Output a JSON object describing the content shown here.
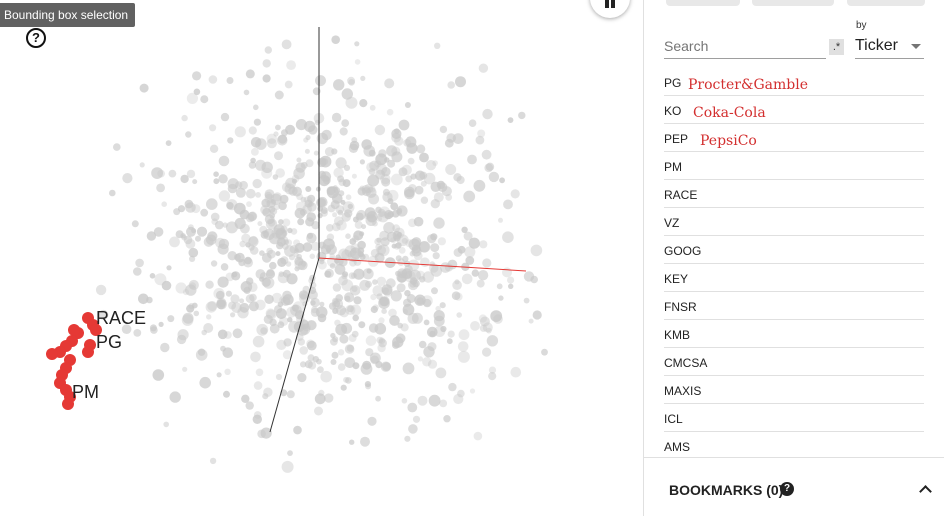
{
  "viz": {
    "tooltip": "Bounding box selection",
    "help_glyph": "?",
    "labels": [
      {
        "text": "RACE"
      },
      {
        "text": "PG"
      },
      {
        "text": "PM"
      }
    ],
    "highlight_color": "#e53935",
    "point_color": "#c8c8c8",
    "axis_x_color": "#e53935",
    "axis_y_color": "#333333"
  },
  "search": {
    "placeholder": "Search",
    "regex_label": ".*"
  },
  "by": {
    "label": "by",
    "selected": "Ticker"
  },
  "list": {
    "items": [
      {
        "ticker": "PG",
        "company": "Procter&Gamble"
      },
      {
        "ticker": "KO",
        "company": "Coka-Cola"
      },
      {
        "ticker": "PEP",
        "company": "PepsiCo"
      },
      {
        "ticker": "PM",
        "company": ""
      },
      {
        "ticker": "RACE",
        "company": ""
      },
      {
        "ticker": "VZ",
        "company": ""
      },
      {
        "ticker": "GOOG",
        "company": ""
      },
      {
        "ticker": "KEY",
        "company": ""
      },
      {
        "ticker": "FNSR",
        "company": ""
      },
      {
        "ticker": "KMB",
        "company": ""
      },
      {
        "ticker": "CMCSA",
        "company": ""
      },
      {
        "ticker": "MAXIS",
        "company": ""
      },
      {
        "ticker": "ICL",
        "company": ""
      },
      {
        "ticker": "AMS",
        "company": ""
      }
    ]
  },
  "bookmarks": {
    "title": "BOOKMARKS (0)",
    "help_glyph": "?"
  },
  "icons": [
    "help-icon",
    "pause-icon",
    "regex-icon",
    "chevron-down-icon",
    "chevron-up-icon"
  ]
}
